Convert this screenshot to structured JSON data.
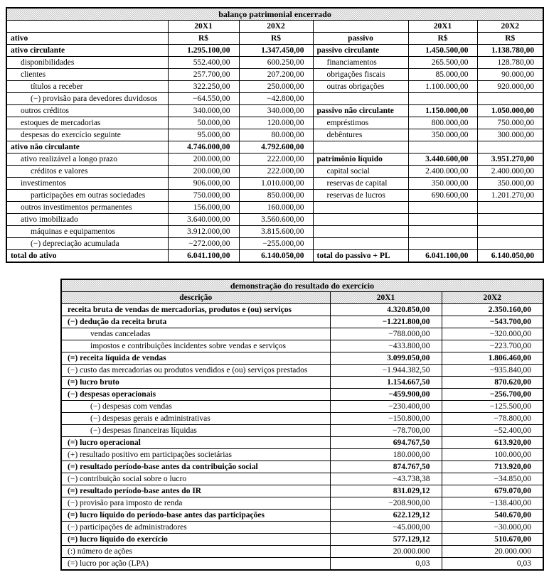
{
  "balance_sheet": {
    "title": "balanço patrimonial encerrado",
    "year_headers": [
      "20X1",
      "20X2",
      "20X1",
      "20X2"
    ],
    "left_section_header": "ativo",
    "right_section_header": "passivo",
    "currency_label": "R$",
    "rows": [
      {
        "left": {
          "label": "ativo circulante",
          "indent": 0,
          "bold": true,
          "y1": "1.295.100,00",
          "y2": "1.347.450,00"
        },
        "right": {
          "label": "passivo circulante",
          "indent": 0,
          "bold": true,
          "y1": "1.450.500,00",
          "y2": "1.138.780,00"
        }
      },
      {
        "left": {
          "label": "disponibilidades",
          "indent": 1,
          "bold": false,
          "y1": "552.400,00",
          "y2": "600.250,00"
        },
        "right": {
          "label": "financiamentos",
          "indent": 1,
          "bold": false,
          "y1": "265.500,00",
          "y2": "128.780,00"
        }
      },
      {
        "left": {
          "label": "clientes",
          "indent": 1,
          "bold": false,
          "y1": "257.700,00",
          "y2": "207.200,00"
        },
        "right": {
          "label": "obrigações fiscais",
          "indent": 1,
          "bold": false,
          "y1": "85.000,00",
          "y2": "90.000,00"
        }
      },
      {
        "left": {
          "label": "títulos a receber",
          "indent": 2,
          "bold": false,
          "y1": "322.250,00",
          "y2": "250.000,00"
        },
        "right": {
          "label": "outras obrigações",
          "indent": 1,
          "bold": false,
          "y1": "1.100.000,00",
          "y2": "920.000,00"
        }
      },
      {
        "left": {
          "label": "(−) provisão para devedores duvidosos",
          "indent": 2,
          "bold": false,
          "y1": "−64.550,00",
          "y2": "−42.800,00"
        },
        "right": null
      },
      {
        "left": {
          "label": "outros créditos",
          "indent": 1,
          "bold": false,
          "y1": "340.000,00",
          "y2": "340.000,00"
        },
        "right": {
          "label": "passivo não circulante",
          "indent": 0,
          "bold": true,
          "y1": "1.150.000,00",
          "y2": "1.050.000,00"
        }
      },
      {
        "left": {
          "label": "estoques de mercadorias",
          "indent": 1,
          "bold": false,
          "y1": "50.000,00",
          "y2": "120.000,00"
        },
        "right": {
          "label": "empréstimos",
          "indent": 1,
          "bold": false,
          "y1": "800.000,00",
          "y2": "750.000,00"
        }
      },
      {
        "left": {
          "label": "despesas do exercício seguinte",
          "indent": 1,
          "bold": false,
          "y1": "95.000,00",
          "y2": "80.000,00"
        },
        "right": {
          "label": "debêntures",
          "indent": 1,
          "bold": false,
          "y1": "350.000,00",
          "y2": "300.000,00"
        }
      },
      {
        "left": {
          "label": "ativo não circulante",
          "indent": 0,
          "bold": true,
          "y1": "4.746.000,00",
          "y2": "4.792.600,00"
        },
        "right": null
      },
      {
        "left": {
          "label": "ativo realizável a longo prazo",
          "indent": 1,
          "bold": false,
          "y1": "200.000,00",
          "y2": "222.000,00"
        },
        "right": {
          "label": "patrimônio líquido",
          "indent": 0,
          "bold": true,
          "y1": "3.440.600,00",
          "y2": "3.951.270,00"
        }
      },
      {
        "left": {
          "label": "créditos e valores",
          "indent": 2,
          "bold": false,
          "y1": "200.000,00",
          "y2": "222.000,00"
        },
        "right": {
          "label": "capital social",
          "indent": 1,
          "bold": false,
          "y1": "2.400.000,00",
          "y2": "2.400.000,00"
        }
      },
      {
        "left": {
          "label": "investimentos",
          "indent": 1,
          "bold": false,
          "y1": "906.000,00",
          "y2": "1.010.000,00"
        },
        "right": {
          "label": "reservas de capital",
          "indent": 1,
          "bold": false,
          "y1": "350.000,00",
          "y2": "350.000,00"
        }
      },
      {
        "left": {
          "label": "participações em outras  sociedades",
          "indent": 2,
          "bold": false,
          "y1": "750.000,00",
          "y2": "850.000,00"
        },
        "right": {
          "label": "reservas de lucros",
          "indent": 1,
          "bold": false,
          "y1": "690.600,00",
          "y2": "1.201.270,00"
        }
      },
      {
        "left": {
          "label": "outros investimentos permanentes",
          "indent": 1,
          "bold": false,
          "y1": "156.000,00",
          "y2": "160.000,00"
        },
        "right": null
      },
      {
        "left": {
          "label": "ativo imobilizado",
          "indent": 1,
          "bold": false,
          "y1": "3.640.000,00",
          "y2": "3.560.600,00"
        },
        "right": null
      },
      {
        "left": {
          "label": "máquinas e equipamentos",
          "indent": 2,
          "bold": false,
          "y1": "3.912.000,00",
          "y2": "3.815.600,00"
        },
        "right": null
      },
      {
        "left": {
          "label": "(−) depreciação acumulada",
          "indent": 2,
          "bold": false,
          "y1": "−272.000,00",
          "y2": "−255.000,00"
        },
        "right": null
      },
      {
        "left": {
          "label": "total do ativo",
          "indent": 0,
          "bold": true,
          "y1": "6.041.100,00",
          "y2": "6.140.050,00"
        },
        "right": {
          "label": "total do passivo + PL",
          "indent": 0,
          "bold": true,
          "y1": "6.041.100,00",
          "y2": "6.140.050,00"
        }
      }
    ]
  },
  "income_statement": {
    "title": "demonstração do resultado do exercício",
    "column_headers": [
      "descrição",
      "20X1",
      "20X2"
    ],
    "rows": [
      {
        "label": "receita bruta de vendas de mercadorias, produtos e (ou) serviços",
        "indent": 0,
        "bold": true,
        "y1": "4.320.850,00",
        "y2": "2.350.160,00"
      },
      {
        "label": "(−) dedução da receita bruta",
        "indent": 0,
        "bold": true,
        "y1": "−1.221.800,00",
        "y2": "−543.700,00"
      },
      {
        "label": "vendas canceladas",
        "indent": 1,
        "bold": false,
        "y1": "−788.000,00",
        "y2": "−320.000,00"
      },
      {
        "label": "impostos e contribuições incidentes sobre vendas e serviços",
        "indent": 1,
        "bold": false,
        "y1": "−433.800,00",
        "y2": "−223.700,00"
      },
      {
        "label": "(=) receita líquida de vendas",
        "indent": 0,
        "bold": true,
        "y1": "3.099.050,00",
        "y2": "1.806.460,00"
      },
      {
        "label": "(−) custo das mercadorias ou produtos vendidos e (ou) serviços prestados",
        "indent": 0,
        "bold": false,
        "y1": "−1.944.382,50",
        "y2": "−935.840,00"
      },
      {
        "label": "(=) lucro bruto",
        "indent": 0,
        "bold": true,
        "y1": "1.154.667,50",
        "y2": "870.620,00"
      },
      {
        "label": "(−) despesas operacionais",
        "indent": 0,
        "bold": true,
        "y1": "−459.900,00",
        "y2": "−256.700,00"
      },
      {
        "label": "(−) despesas com vendas",
        "indent": 1,
        "bold": false,
        "y1": "−230.400,00",
        "y2": "−125.500,00"
      },
      {
        "label": "(−) despesas gerais e administrativas",
        "indent": 1,
        "bold": false,
        "y1": "−150.800,00",
        "y2": "−78.800,00"
      },
      {
        "label": "(−) despesas financeiras líquidas",
        "indent": 1,
        "bold": false,
        "y1": "−78.700,00",
        "y2": "−52.400,00"
      },
      {
        "label": "(=) lucro operacional",
        "indent": 0,
        "bold": true,
        "y1": "694.767,50",
        "y2": "613.920,00"
      },
      {
        "label": "(+) resultado positivo em participações societárias",
        "indent": 0,
        "bold": false,
        "y1": "180.000,00",
        "y2": "100.000,00"
      },
      {
        "label": "(=) resultado período-base antes da contribuição social",
        "indent": 0,
        "bold": true,
        "y1": "874.767,50",
        "y2": "713.920,00"
      },
      {
        "label": "(−) contribuição social sobre o lucro",
        "indent": 0,
        "bold": false,
        "y1": "−43.738,38",
        "y2": "−34.850,00"
      },
      {
        "label": "(=) resultado período-base antes do IR",
        "indent": 0,
        "bold": true,
        "y1": "831.029,12",
        "y2": "679.070,00"
      },
      {
        "label": "(−) provisão para imposto de renda",
        "indent": 0,
        "bold": false,
        "y1": "−208.900,00",
        "y2": "−138.400,00"
      },
      {
        "label": "(=) lucro líquido do período-base antes das participações",
        "indent": 0,
        "bold": true,
        "y1": "622.129,12",
        "y2": "540.670,00"
      },
      {
        "label": "(−) participações de administradores",
        "indent": 0,
        "bold": false,
        "y1": "−45.000,00",
        "y2": "−30.000,00"
      },
      {
        "label": "(=) lucro líquido do exercício",
        "indent": 0,
        "bold": true,
        "y1": "577.129,12",
        "y2": "510.670,00"
      },
      {
        "label": "(:) número de ações",
        "indent": 0,
        "bold": false,
        "y1": "20.000.000",
        "y2": "20.000.000"
      },
      {
        "label": "(=) lucro por ação (LPA)",
        "indent": 0,
        "bold": false,
        "y1": "0,03",
        "y2": "0,03"
      }
    ]
  }
}
